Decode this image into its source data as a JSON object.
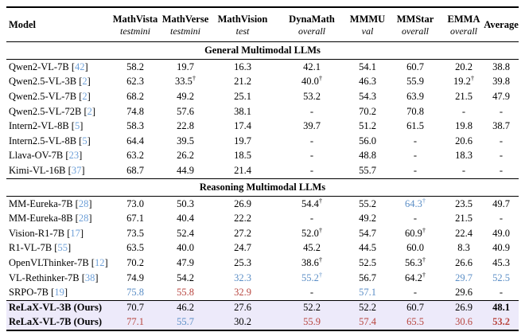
{
  "table": {
    "colors": {
      "best": "#b8453f",
      "second": "#5b8ec6",
      "citation": "#6ea0d8",
      "ours_row_bg": "#edeafa"
    },
    "columns": [
      {
        "name": "Model",
        "subtitle": ""
      },
      {
        "name": "MathVista",
        "subtitle": "testmini"
      },
      {
        "name": "MathVerse",
        "subtitle": "testmini"
      },
      {
        "name": "MathVision",
        "subtitle": "test"
      },
      {
        "name": "DynaMath",
        "subtitle": "overall"
      },
      {
        "name": "MMMU",
        "subtitle": "val"
      },
      {
        "name": "MMStar",
        "subtitle": "overall"
      },
      {
        "name": "EMMA",
        "subtitle": "overall"
      },
      {
        "name": "Average",
        "subtitle": ""
      }
    ],
    "sections": [
      {
        "title": "General Multimodal LLMs",
        "rows": [
          {
            "model": "Qwen2-VL-7B",
            "ref": "42",
            "values": [
              "58.2",
              "19.7",
              "16.3",
              "42.1",
              "54.1",
              "60.7",
              "20.2",
              "38.8"
            ],
            "styles": {}
          },
          {
            "model": "Qwen2.5-VL-3B",
            "ref": "2",
            "values": [
              "62.3",
              "33.5†",
              "21.2",
              "40.0†",
              "46.3",
              "55.9",
              "19.2†",
              "39.8"
            ],
            "styles": {}
          },
          {
            "model": "Qwen2.5-VL-7B",
            "ref": "2",
            "values": [
              "68.2",
              "49.2",
              "25.1",
              "53.2",
              "54.3",
              "63.9",
              "21.5",
              "47.9"
            ],
            "styles": {}
          },
          {
            "model": "Qwen2.5-VL-72B",
            "ref": "2",
            "values": [
              "74.8",
              "57.6",
              "38.1",
              "-",
              "70.2",
              "70.8",
              "-",
              "-"
            ],
            "styles": {}
          },
          {
            "model": "Intern2-VL-8B",
            "ref": "5",
            "values": [
              "58.3",
              "22.8",
              "17.4",
              "39.7",
              "51.2",
              "61.5",
              "19.8",
              "38.7"
            ],
            "styles": {}
          },
          {
            "model": "Intern2.5-VL-8B",
            "ref": "5",
            "values": [
              "64.4",
              "39.5",
              "19.7",
              "-",
              "56.0",
              "-",
              "20.6",
              "-"
            ],
            "styles": {}
          },
          {
            "model": "Llava-OV-7B",
            "ref": "23",
            "values": [
              "63.2",
              "26.2",
              "18.5",
              "-",
              "48.8",
              "-",
              "18.3",
              "-"
            ],
            "styles": {}
          },
          {
            "model": "Kimi-VL-16B",
            "ref": "37",
            "values": [
              "68.7",
              "44.9",
              "21.4",
              "-",
              "55.7",
              "-",
              "-",
              "-"
            ],
            "styles": {}
          }
        ]
      },
      {
        "title": "Reasoning Multimodal LLMs",
        "rows": [
          {
            "model": "MM-Eureka-7B",
            "ref": "28",
            "values": [
              "73.0",
              "50.3",
              "26.9",
              "54.4†",
              "55.2",
              "64.3†",
              "23.5",
              "49.7"
            ],
            "styles": {
              "5": "second"
            }
          },
          {
            "model": "MM-Eureka-8B",
            "ref": "28",
            "values": [
              "67.1",
              "40.4",
              "22.2",
              "-",
              "49.2",
              "-",
              "21.5",
              "-"
            ],
            "styles": {}
          },
          {
            "model": "Vision-R1-7B",
            "ref": "17",
            "values": [
              "73.5",
              "52.4",
              "27.2",
              "52.0†",
              "54.7",
              "60.9†",
              "22.4",
              "49.0"
            ],
            "styles": {}
          },
          {
            "model": "R1-VL-7B",
            "ref": "55",
            "values": [
              "63.5",
              "40.0",
              "24.7",
              "45.2",
              "44.5",
              "60.0",
              "8.3",
              "40.9"
            ],
            "styles": {}
          },
          {
            "model": "OpenVLThinker-7B",
            "ref": "12",
            "values": [
              "70.2",
              "47.9",
              "25.3",
              "38.6†",
              "52.5",
              "56.3†",
              "26.6",
              "45.3"
            ],
            "styles": {}
          },
          {
            "model": "VL-Rethinker-7B",
            "ref": "38",
            "values": [
              "74.9",
              "54.2",
              "32.3",
              "55.2†",
              "56.7",
              "64.2†",
              "29.7",
              "52.5"
            ],
            "styles": {
              "2": "second",
              "3": "second",
              "6": "second",
              "7": "second"
            }
          },
          {
            "model": "SRPO-7B",
            "ref": "19",
            "values": [
              "75.8",
              "55.8",
              "32.9",
              "-",
              "57.1",
              "-",
              "29.6",
              "-"
            ],
            "styles": {
              "0": "second",
              "1": "best",
              "2": "best",
              "4": "second"
            }
          }
        ]
      }
    ],
    "ours": [
      {
        "model": "ReLaX-VL-3B (Ours)",
        "ref": "",
        "values": [
          "70.7",
          "46.2",
          "27.6",
          "52.2",
          "52.2",
          "60.7",
          "26.9",
          "48.1"
        ],
        "styles": {
          "7": "bold"
        }
      },
      {
        "model": "ReLaX-VL-7B (Ours)",
        "ref": "",
        "values": [
          "77.1",
          "55.7",
          "30.2",
          "55.9",
          "57.4",
          "65.5",
          "30.6",
          "53.2"
        ],
        "styles": {
          "0": "best",
          "1": "second",
          "3": "best",
          "4": "best",
          "5": "best",
          "6": "best",
          "7": "best-bold"
        }
      }
    ]
  }
}
